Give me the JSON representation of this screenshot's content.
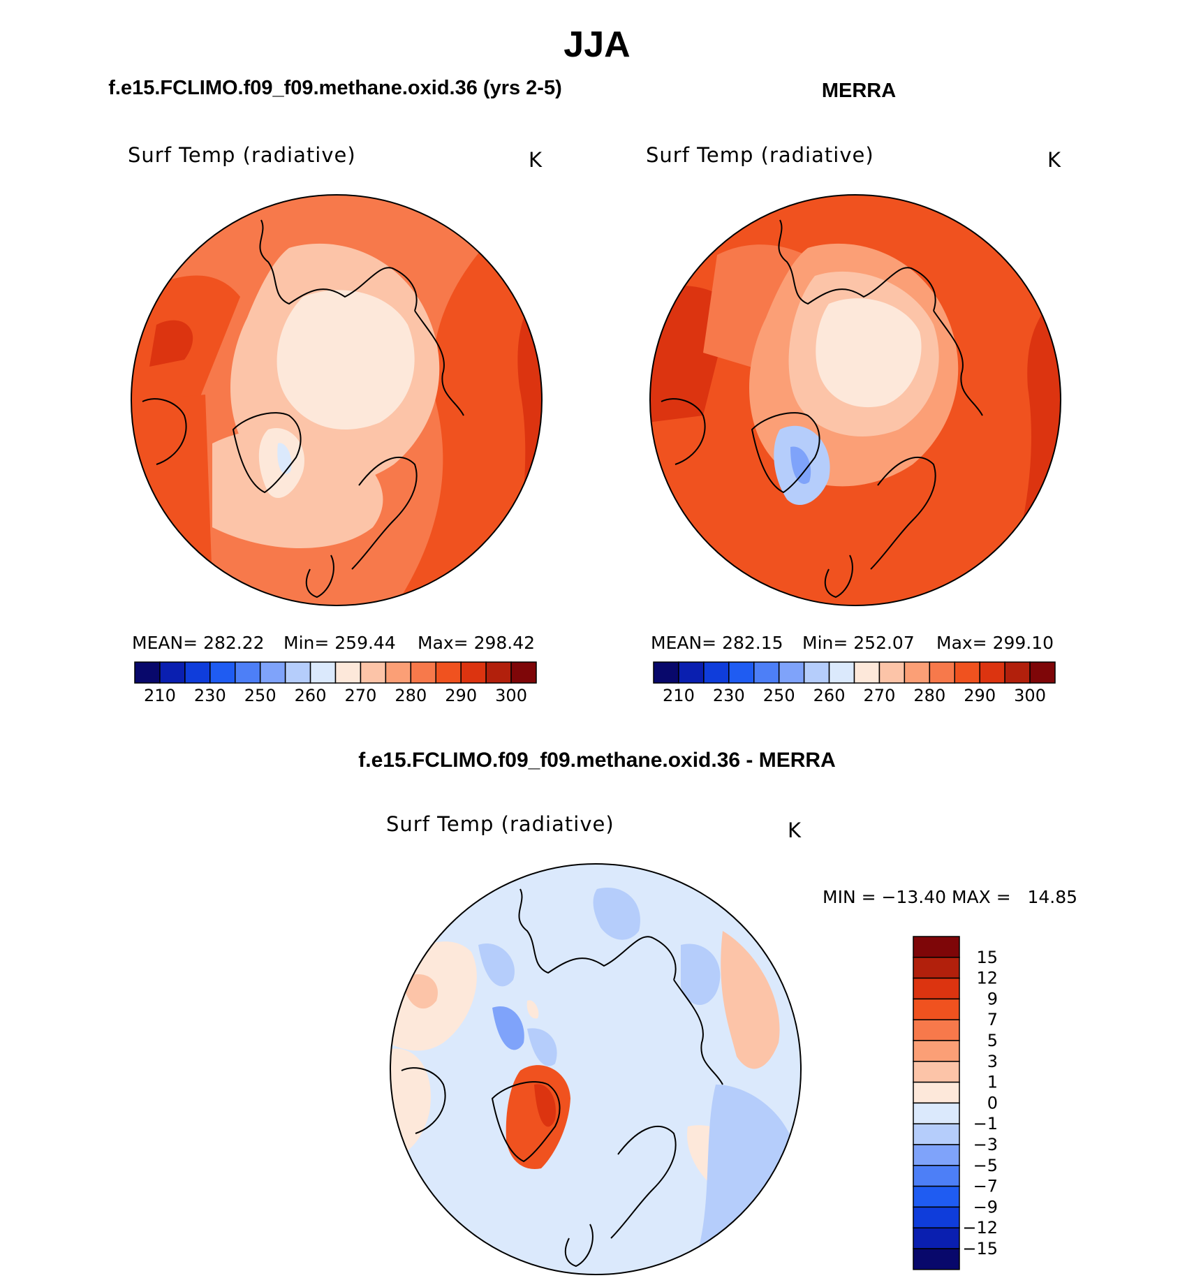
{
  "figure": {
    "season": "JJA",
    "model_title": "f.e15.FCLIMO.f09_f09.methane.oxid.36 (yrs 2-5)",
    "obs_title": "MERRA",
    "diff_title": "f.e15.FCLIMO.f09_f09.methane.oxid.36 - MERRA"
  },
  "panels": {
    "model": {
      "variable": "Surf Temp (radiative)",
      "units": "K",
      "mean_text": "MEAN= 282.22",
      "min_text": "Min= 259.44",
      "max_text": "Max= 298.42"
    },
    "obs": {
      "variable": "Surf Temp (radiative)",
      "units": "K",
      "mean_text": "MEAN= 282.15",
      "min_text": "Min= 252.07",
      "max_text": "Max= 299.10"
    },
    "diff": {
      "variable": "Surf Temp (radiative)",
      "units": "K",
      "minmax_text": "MIN = −13.40 MAX =   14.85"
    }
  },
  "colorbars": {
    "abs_colors": [
      "#08086b",
      "#0a1fb0",
      "#0f3ddb",
      "#1f5cf2",
      "#4d7ff7",
      "#7fa3fa",
      "#b5cdfb",
      "#dbe9fc",
      "#fde8da",
      "#fcc4a8",
      "#fb9f76",
      "#f7794b",
      "#f0521f",
      "#dc3410",
      "#b2200c",
      "#7e0608"
    ],
    "abs_ticks": [
      "210",
      "230",
      "250",
      "260",
      "270",
      "280",
      "290",
      "300"
    ],
    "diff_colors": [
      "#08086b",
      "#0a1fb0",
      "#0f3ddb",
      "#1f5cf2",
      "#4d7ff7",
      "#7fa3fa",
      "#b5cdfb",
      "#dbe9fc",
      "#fde8da",
      "#fcc4a8",
      "#fb9f76",
      "#f7794b",
      "#f0521f",
      "#dc3410",
      "#b2200c",
      "#7e0608"
    ],
    "diff_ticks": [
      "−15",
      "−12",
      "−9",
      "−7",
      "−5",
      "−3",
      "−1",
      "0",
      "1",
      "3",
      "5",
      "7",
      "9",
      "12",
      "15"
    ]
  },
  "chart_data": [
    {
      "type": "heatmap",
      "title": "Surf Temp (radiative)",
      "units": "K",
      "projection": "north polar stereographic",
      "mean": 282.22,
      "min": 259.44,
      "max": 298.42,
      "contour_levels": [
        210,
        220,
        230,
        240,
        250,
        255,
        260,
        265,
        270,
        275,
        280,
        285,
        290,
        295,
        300
      ]
    },
    {
      "type": "heatmap",
      "title": "Surf Temp (radiative)",
      "units": "K",
      "projection": "north polar stereographic",
      "mean": 282.15,
      "min": 252.07,
      "max": 299.1,
      "contour_levels": [
        210,
        220,
        230,
        240,
        250,
        255,
        260,
        265,
        270,
        275,
        280,
        285,
        290,
        295,
        300
      ]
    },
    {
      "type": "heatmap",
      "title": "Surf Temp (radiative)",
      "units": "K",
      "projection": "north polar stereographic",
      "min": -13.4,
      "max": 14.85,
      "contour_levels": [
        -15,
        -12,
        -9,
        -7,
        -5,
        -3,
        -1,
        0,
        1,
        3,
        5,
        7,
        9,
        12,
        15
      ]
    }
  ]
}
